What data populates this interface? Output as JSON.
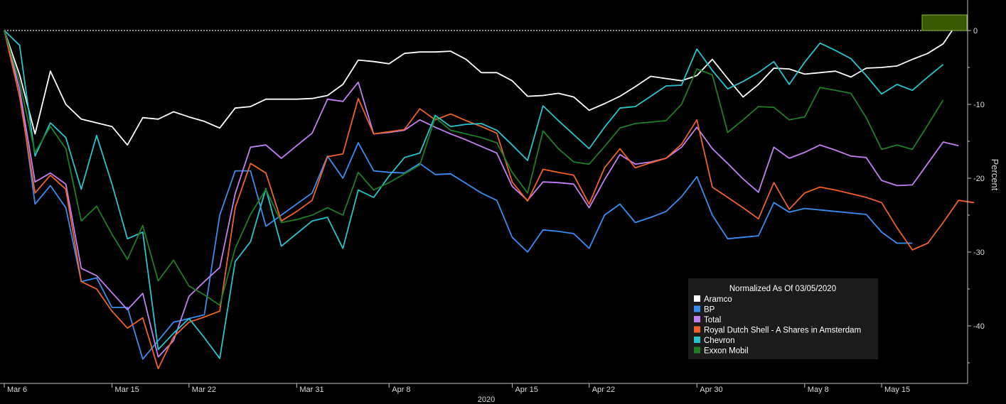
{
  "chart_data": {
    "type": "line",
    "title": "",
    "xlabel": "2020",
    "ylabel": "Percent",
    "x_tick_labels": [
      "Mar 6",
      "Mar 15",
      "Mar 22",
      "Mar 31",
      "Apr 8",
      "Apr 15",
      "Apr 22",
      "Apr 30",
      "May 8",
      "May 15"
    ],
    "y_ticks": [
      0,
      -10,
      -20,
      -30,
      -40
    ],
    "ylim": [
      -47,
      3
    ],
    "grid": false,
    "legend": {
      "title": "Normalized As Of 03/05/2020",
      "placement": "bottom-right"
    },
    "series": [
      {
        "name": "Aramco",
        "color": "#ffffff",
        "values": [
          0,
          -6,
          -14,
          -5.5,
          -10,
          -12,
          -12.5,
          -13,
          -15.5,
          -11.8,
          -12,
          -11,
          -11.7,
          -12.3,
          -13.2,
          -10.5,
          -10.3,
          -9.3,
          -9.3,
          -9.3,
          -9.2,
          -8.8,
          -7.3,
          -4,
          -4.2,
          -4.5,
          -3.1,
          -2.9,
          -2.9,
          -2.8,
          -3.9,
          -5.7,
          -5.7,
          -6.8,
          -8.9,
          -8.8,
          -8.5,
          -9,
          -10.8,
          -9.9,
          -8.9,
          -7.6,
          -6.2,
          -6.5,
          -6.8,
          -6.1,
          -3.9,
          -6.5,
          -9,
          -7.3,
          -5.1,
          -5.2,
          -5.9,
          -5.7,
          -5.5,
          -6.3,
          -5.1,
          -5,
          -4.8,
          -3.9,
          -3.1,
          -1.8,
          1.3
        ]
      },
      {
        "name": "BP",
        "color": "#3a8df0",
        "values": [
          0,
          -8,
          -23.5,
          -21,
          -24,
          -34,
          -33.5,
          -37.5,
          -37.5,
          -44.5,
          -42,
          -39.5,
          -39,
          -38.5,
          -25,
          -19,
          -19,
          -26.5,
          -25,
          -23.5,
          -22,
          -17,
          -20,
          -15.2,
          -19,
          -19.2,
          -19.3,
          -18,
          -19.5,
          -19.4,
          -20.7,
          -22,
          -23,
          -28,
          -30,
          -27,
          -27.2,
          -27.5,
          -29.5,
          -25,
          -23.5,
          -26,
          -25.3,
          -24.5,
          -22.5,
          -19.8,
          -25,
          -28.2,
          -28,
          -27.8,
          -23.3,
          -24.6,
          -24.1,
          -24.3,
          -24.5,
          -24.7,
          -24.9,
          -27.3,
          -28.8,
          -28.8
        ]
      },
      {
        "name": "Total",
        "color": "#c27ff2",
        "values": [
          0,
          -8,
          -20.5,
          -19.3,
          -20.8,
          -32.2,
          -33.2,
          -35.5,
          -37.8,
          -35.6,
          -44.2,
          -42,
          -36,
          -34,
          -32.1,
          -22.1,
          -15.8,
          -15.5,
          -17.3,
          -15.6,
          -13.9,
          -9.3,
          -9.6,
          -7,
          -14,
          -13.8,
          -13.5,
          -12.1,
          -13.1,
          -14,
          -14.8,
          -15.7,
          -16.6,
          -21.1,
          -23,
          -20.5,
          -20.6,
          -20.8,
          -24,
          -20.2,
          -16.8,
          -18.1,
          -17.8,
          -17.3,
          -15.8,
          -13.1,
          -16,
          -18,
          -20.1,
          -21.9,
          -15.8,
          -17.3,
          -16.5,
          -15.5,
          -16.2,
          -17,
          -17.2,
          -20.3,
          -21,
          -20.9,
          -18,
          -15.1,
          -15.6
        ]
      },
      {
        "name": "Royal Dutch Shell - A Shares in Amsterdam",
        "color": "#ee6227",
        "values": [
          0,
          -9,
          -22,
          -19.6,
          -21.5,
          -34,
          -35,
          -38,
          -40.3,
          -38.9,
          -45.8,
          -41.5,
          -39.5,
          -38.8,
          -38,
          -24,
          -18,
          -19.3,
          -25.8,
          -24.5,
          -23,
          -17.1,
          -16.7,
          -9.2,
          -14,
          -13.7,
          -13.4,
          -10.6,
          -12.1,
          -11.3,
          -12.2,
          -13,
          -13.9,
          -20.5,
          -23.1,
          -18.8,
          -19.2,
          -19.6,
          -23.5,
          -18.6,
          -16,
          -18.6,
          -17.9,
          -17.3,
          -15.4,
          -12.1,
          -21.2,
          -22.6,
          -24,
          -25.5,
          -20.6,
          -24.2,
          -22,
          -21.2,
          -21.6,
          -22.1,
          -22.6,
          -23.3,
          -26.7,
          -29.7,
          -28.8,
          -26,
          -23,
          -23.3
        ]
      },
      {
        "name": "Chevron",
        "color": "#27c4cd",
        "values": [
          0,
          -2,
          -17,
          -12.5,
          -14.5,
          -21.5,
          -14.2,
          -20.8,
          -28.2,
          -27.3,
          -43.2,
          -41,
          -39,
          -41.6,
          -44.4,
          -31.3,
          -28.6,
          -21.4,
          -29.2,
          -27.5,
          -25.8,
          -25.3,
          -29.5,
          -21.6,
          -22.6,
          -19.7,
          -17.2,
          -16.6,
          -11.5,
          -13,
          -12.7,
          -12.6,
          -13.5,
          -15.5,
          -17.6,
          -10.2,
          -12.2,
          -14.1,
          -16,
          -13.1,
          -10.5,
          -10.3,
          -8.9,
          -7.5,
          -7.4,
          -2.5,
          -5.4,
          -7.9,
          -6.9,
          -5.7,
          -4.2,
          -7.3,
          -4.3,
          -1.7,
          -2.7,
          -3.8,
          -6.1,
          -8.6,
          -7.3,
          -8.1,
          -6.3,
          -4.6
        ]
      },
      {
        "name": "Exxon Mobil",
        "color": "#1e7e23",
        "values": [
          0,
          -7,
          -16.5,
          -13,
          -16,
          -25.8,
          -23.8,
          -27.6,
          -31,
          -26.4,
          -33.9,
          -31.1,
          -34.6,
          -35.8,
          -37.2,
          -29.5,
          -24.9,
          -21.5,
          -26,
          -25.6,
          -25,
          -24,
          -25,
          -19.2,
          -21.6,
          -20.6,
          -19.4,
          -18.2,
          -11.8,
          -13.5,
          -14,
          -14.5,
          -15.2,
          -19.2,
          -22,
          -13.6,
          -16,
          -17.8,
          -18.1,
          -15.7,
          -13.2,
          -12.6,
          -12.4,
          -12.2,
          -10,
          -5.2,
          -6,
          -13.8,
          -12.1,
          -10.3,
          -10.4,
          -12.1,
          -11.7,
          -7.7,
          -8.1,
          -8.5,
          -11.8,
          -16.1,
          -15.5,
          -16.1,
          -12.8,
          -9.4
        ]
      }
    ],
    "last_value_badge": {
      "value": "0",
      "color": "#3a5a00"
    }
  }
}
